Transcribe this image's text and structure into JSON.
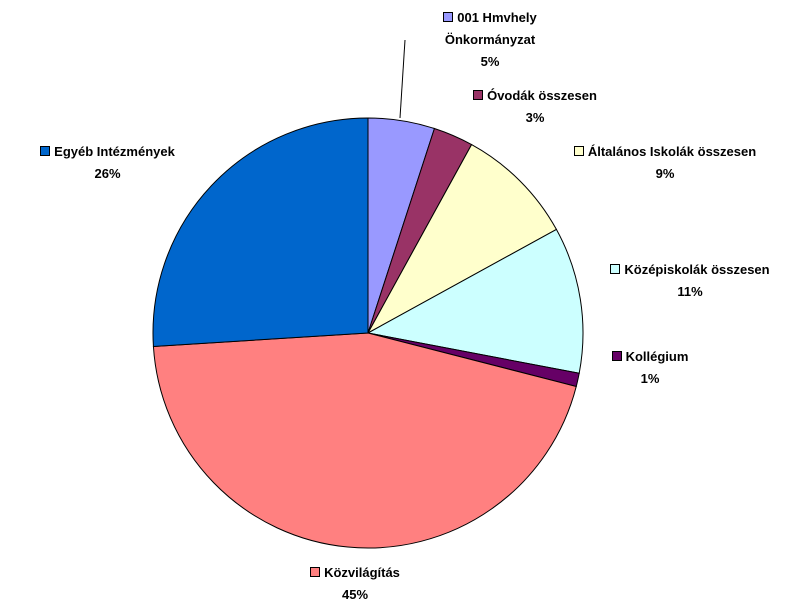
{
  "chart_data": {
    "type": "pie",
    "categories": [
      "001 Hmvhely Önkormányzat",
      "Óvodák összesen",
      "Általános Iskolák összesen",
      "Középiskolák összesen",
      "Kollégium",
      "Közvilágítás",
      "Egyéb Intézmények"
    ],
    "values": [
      5,
      3,
      9,
      11,
      1,
      45,
      26
    ],
    "value_labels": [
      "5%",
      "3%",
      "9%",
      "11%",
      "1%",
      "45%",
      "26%"
    ],
    "colors": [
      "#9999ff",
      "#993366",
      "#ffffcc",
      "#ccffff",
      "#660066",
      "#ff8080",
      "#0066cc"
    ]
  }
}
